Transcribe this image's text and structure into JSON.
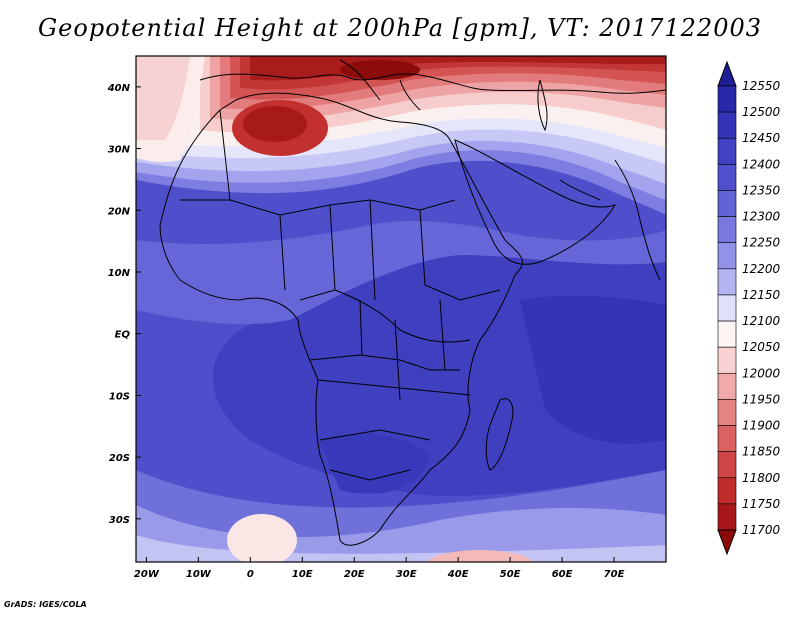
{
  "title": "Geopotential Height at 200hPa [gpm], VT: 2017122003",
  "footer": "GrADS: IGES/COLA",
  "map": {
    "lon_range": [
      -22,
      80
    ],
    "lat_range": [
      -37,
      45
    ],
    "lon_ticks": [
      {
        "v": -20,
        "label": "20W"
      },
      {
        "v": -10,
        "label": "10W"
      },
      {
        "v": 0,
        "label": "0"
      },
      {
        "v": 10,
        "label": "10E"
      },
      {
        "v": 20,
        "label": "20E"
      },
      {
        "v": 30,
        "label": "30E"
      },
      {
        "v": 40,
        "label": "40E"
      },
      {
        "v": 50,
        "label": "50E"
      },
      {
        "v": 60,
        "label": "60E"
      },
      {
        "v": 70,
        "label": "70E"
      }
    ],
    "lat_ticks": [
      {
        "v": 40,
        "label": "40N"
      },
      {
        "v": 30,
        "label": "30N"
      },
      {
        "v": 20,
        "label": "20N"
      },
      {
        "v": 10,
        "label": "10N"
      },
      {
        "v": 0,
        "label": "EQ"
      },
      {
        "v": -10,
        "label": "10S"
      },
      {
        "v": -20,
        "label": "20S"
      },
      {
        "v": -30,
        "label": "30S"
      }
    ]
  },
  "colorbar": {
    "levels": [
      12550,
      12500,
      12450,
      12400,
      12350,
      12300,
      12250,
      12200,
      12150,
      12100,
      12050,
      12000,
      11950,
      11900,
      11850,
      11800,
      11750,
      11700
    ],
    "labels": [
      "12550",
      "12500",
      "12450",
      "12400",
      "12350",
      "12300",
      "12250",
      "12200",
      "12150",
      "12100",
      "12050",
      "12000",
      "11950",
      "11900",
      "11850",
      "11800",
      "11750",
      "11700"
    ],
    "colors": [
      "#1e1e96",
      "#2828aa",
      "#3434b9",
      "#4141c3",
      "#5050cd",
      "#6363d6",
      "#7878df",
      "#9292e8",
      "#b4b4f2",
      "#e0e0fa",
      "#fdf4f4",
      "#f8d2d2",
      "#f0aaaa",
      "#e68484",
      "#dc6262",
      "#d04646",
      "#c02c2c",
      "#a81818",
      "#8c0c0c"
    ]
  }
}
